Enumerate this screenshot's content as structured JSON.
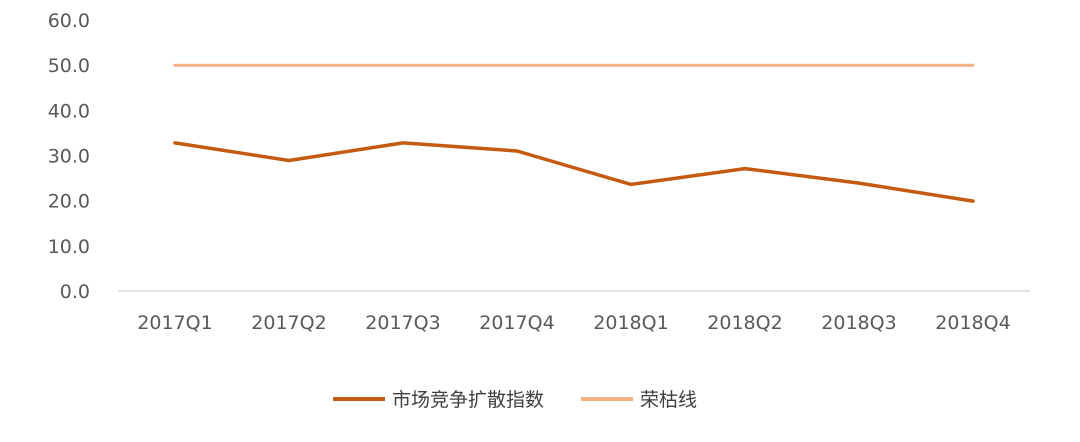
{
  "chart_data": {
    "type": "line",
    "categories": [
      "2017Q1",
      "2017Q2",
      "2017Q3",
      "2017Q4",
      "2018Q1",
      "2018Q2",
      "2018Q3",
      "2018Q4"
    ],
    "series": [
      {
        "name": "市场竞争扩散指数",
        "values": [
          32.8,
          28.9,
          32.8,
          31.0,
          23.6,
          27.1,
          23.9,
          19.9
        ],
        "color": "#C55A11"
      },
      {
        "name": "荣枯线",
        "values": [
          50.0,
          50.0,
          50.0,
          50.0,
          50.0,
          50.0,
          50.0,
          50.0
        ],
        "color": "#F4B183"
      }
    ],
    "yticks": [
      "0.0",
      "10.0",
      "20.0",
      "30.0",
      "40.0",
      "50.0",
      "60.0"
    ],
    "ylim": [
      0,
      60
    ],
    "grid": false,
    "legend_position": "bottom"
  }
}
